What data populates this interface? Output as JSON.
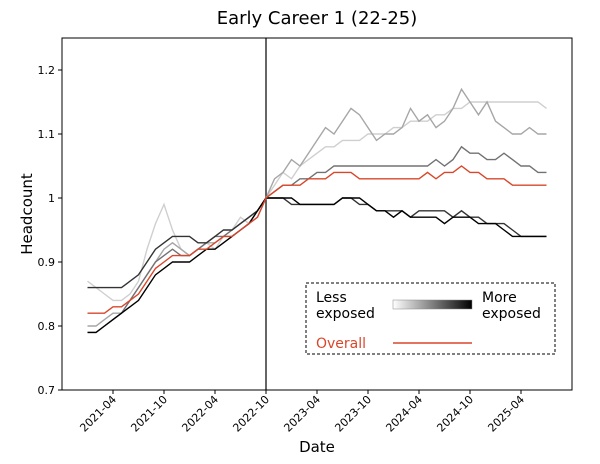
{
  "chart_data": {
    "type": "line",
    "title": "Early Career 1 (22-25)",
    "xlabel": "Date",
    "ylabel": "Headcount",
    "x": [
      "2021-01",
      "2021-02",
      "2021-03",
      "2021-04",
      "2021-05",
      "2021-06",
      "2021-07",
      "2021-08",
      "2021-09",
      "2021-10",
      "2021-11",
      "2021-12",
      "2022-01",
      "2022-02",
      "2022-03",
      "2022-04",
      "2022-05",
      "2022-06",
      "2022-07",
      "2022-08",
      "2022-09",
      "2022-10",
      "2022-11",
      "2022-12",
      "2023-01",
      "2023-02",
      "2023-03",
      "2023-04",
      "2023-05",
      "2023-06",
      "2023-07",
      "2023-08",
      "2023-09",
      "2023-10",
      "2023-11",
      "2023-12",
      "2024-01",
      "2024-02",
      "2024-03",
      "2024-04",
      "2024-05",
      "2024-06",
      "2024-07",
      "2024-08",
      "2024-09",
      "2024-10",
      "2024-11",
      "2024-12",
      "2025-01",
      "2025-02",
      "2025-03",
      "2025-04",
      "2025-05",
      "2025-06",
      "2025-07"
    ],
    "series": [
      {
        "color": "#cfcfcf",
        "values": [
          0.87,
          0.86,
          0.85,
          0.84,
          0.84,
          0.85,
          0.87,
          0.92,
          0.96,
          0.99,
          0.95,
          0.92,
          0.91,
          0.92,
          0.93,
          0.92,
          0.94,
          0.95,
          0.97,
          0.96,
          0.97,
          1.0,
          1.02,
          1.04,
          1.03,
          1.05,
          1.06,
          1.07,
          1.08,
          1.08,
          1.09,
          1.09,
          1.09,
          1.1,
          1.1,
          1.1,
          1.11,
          1.11,
          1.12,
          1.12,
          1.12,
          1.13,
          1.13,
          1.14,
          1.14,
          1.15,
          1.15,
          1.15,
          1.15,
          1.15,
          1.15,
          1.15,
          1.15,
          1.15,
          1.14
        ]
      },
      {
        "color": "#a6a6a6",
        "values": [
          0.8,
          0.8,
          0.81,
          0.82,
          0.82,
          0.84,
          0.86,
          0.88,
          0.9,
          0.92,
          0.93,
          0.92,
          0.91,
          0.92,
          0.93,
          0.93,
          0.94,
          0.94,
          0.95,
          0.96,
          0.98,
          1.0,
          1.03,
          1.04,
          1.06,
          1.05,
          1.07,
          1.09,
          1.11,
          1.1,
          1.12,
          1.14,
          1.13,
          1.11,
          1.09,
          1.1,
          1.1,
          1.11,
          1.14,
          1.12,
          1.13,
          1.11,
          1.12,
          1.14,
          1.17,
          1.15,
          1.13,
          1.15,
          1.12,
          1.11,
          1.1,
          1.1,
          1.11,
          1.1,
          1.1
        ]
      },
      {
        "color": "#727272",
        "values": [
          0.79,
          0.79,
          0.8,
          0.81,
          0.82,
          0.84,
          0.86,
          0.88,
          0.9,
          0.91,
          0.92,
          0.91,
          0.91,
          0.92,
          0.93,
          0.94,
          0.94,
          0.95,
          0.96,
          0.97,
          0.98,
          1.0,
          1.01,
          1.02,
          1.02,
          1.03,
          1.03,
          1.04,
          1.04,
          1.05,
          1.05,
          1.05,
          1.05,
          1.05,
          1.05,
          1.05,
          1.05,
          1.05,
          1.05,
          1.05,
          1.05,
          1.06,
          1.05,
          1.06,
          1.08,
          1.07,
          1.07,
          1.06,
          1.06,
          1.07,
          1.06,
          1.05,
          1.05,
          1.04,
          1.04
        ]
      },
      {
        "color": "#333333",
        "values": [
          0.86,
          0.86,
          0.86,
          0.86,
          0.86,
          0.87,
          0.88,
          0.9,
          0.92,
          0.93,
          0.94,
          0.94,
          0.94,
          0.93,
          0.93,
          0.94,
          0.95,
          0.95,
          0.96,
          0.97,
          0.98,
          1.0,
          1.0,
          1.0,
          0.99,
          0.99,
          0.99,
          0.99,
          0.99,
          0.99,
          1.0,
          1.0,
          0.99,
          0.99,
          0.98,
          0.98,
          0.98,
          0.98,
          0.97,
          0.98,
          0.98,
          0.98,
          0.98,
          0.97,
          0.98,
          0.97,
          0.97,
          0.96,
          0.96,
          0.96,
          0.95,
          0.94,
          0.94,
          0.94,
          0.94
        ]
      },
      {
        "color": "#000000",
        "values": [
          0.79,
          0.79,
          0.8,
          0.81,
          0.82,
          0.83,
          0.84,
          0.86,
          0.88,
          0.89,
          0.9,
          0.9,
          0.9,
          0.91,
          0.92,
          0.92,
          0.93,
          0.94,
          0.95,
          0.96,
          0.98,
          1.0,
          1.0,
          1.0,
          1.0,
          0.99,
          0.99,
          0.99,
          0.99,
          0.99,
          1.0,
          1.0,
          1.0,
          0.99,
          0.98,
          0.98,
          0.97,
          0.98,
          0.97,
          0.97,
          0.97,
          0.97,
          0.96,
          0.97,
          0.97,
          0.97,
          0.96,
          0.96,
          0.96,
          0.95,
          0.94,
          0.94,
          0.94,
          0.94,
          0.94
        ]
      },
      {
        "name": "Overall",
        "color": "#d9472b",
        "values": [
          0.82,
          0.82,
          0.82,
          0.83,
          0.83,
          0.84,
          0.85,
          0.87,
          0.89,
          0.9,
          0.91,
          0.91,
          0.91,
          0.92,
          0.92,
          0.93,
          0.94,
          0.94,
          0.95,
          0.96,
          0.97,
          1.0,
          1.01,
          1.02,
          1.02,
          1.02,
          1.03,
          1.03,
          1.03,
          1.04,
          1.04,
          1.04,
          1.03,
          1.03,
          1.03,
          1.03,
          1.03,
          1.03,
          1.03,
          1.03,
          1.04,
          1.03,
          1.04,
          1.04,
          1.05,
          1.04,
          1.04,
          1.03,
          1.03,
          1.03,
          1.02,
          1.02,
          1.02,
          1.02,
          1.02
        ]
      }
    ],
    "legend": {
      "low_label": "Less exposed",
      "high_label": "More exposed"
    },
    "vline": "2022-10",
    "xlim": [
      "2020-10",
      "2025-10"
    ],
    "xticks": [
      "2021-04",
      "2021-10",
      "2022-04",
      "2022-10",
      "2023-04",
      "2023-10",
      "2024-04",
      "2024-10",
      "2025-04"
    ],
    "ylim": [
      0.7,
      1.25
    ],
    "yticks": [
      0.7,
      0.8,
      0.9,
      1.0,
      1.1,
      1.2
    ]
  }
}
